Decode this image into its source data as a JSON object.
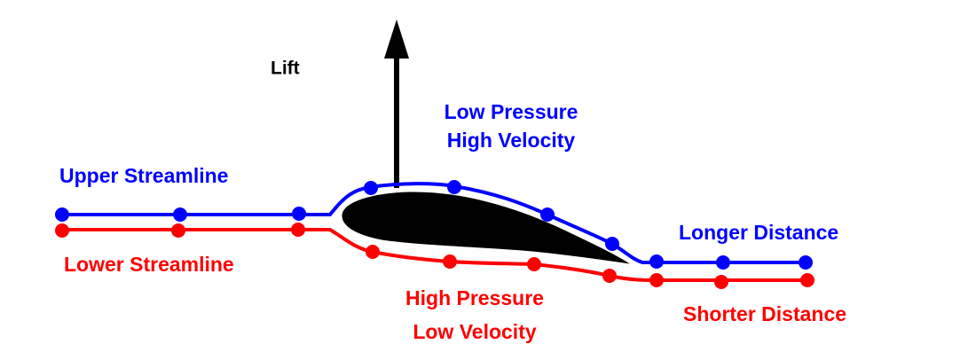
{
  "lift": "Lift",
  "upper": {
    "zone": [
      "Low Pressure",
      "High Velocity"
    ],
    "streamline": "Upper Streamline",
    "distance": "Longer Distance"
  },
  "lower": {
    "zone": [
      "High Pressure",
      "Low Velocity"
    ],
    "streamline": "Lower Streamline",
    "distance": "Shorter Distance"
  }
}
